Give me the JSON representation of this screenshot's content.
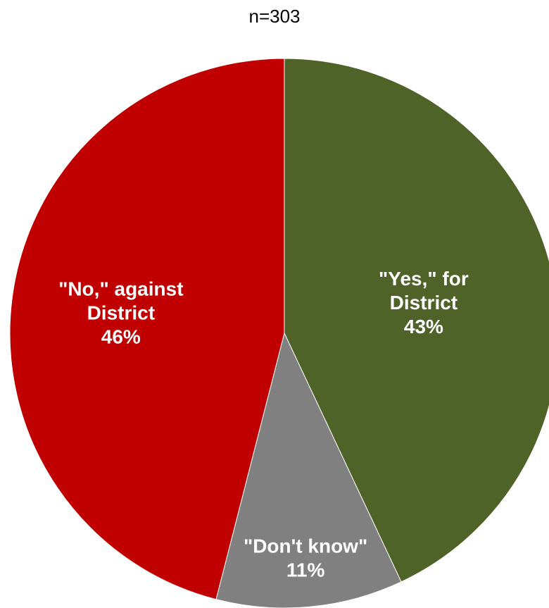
{
  "chart_data": {
    "type": "pie",
    "subtitle": "n=303",
    "slices": [
      {
        "label_lines": [
          "\"Yes,\" for",
          "District"
        ],
        "value": 43,
        "value_text": "43%",
        "color": "#4F6228"
      },
      {
        "label_lines": [
          "\"Don't know\""
        ],
        "value": 11,
        "value_text": "11%",
        "color": "#808080"
      },
      {
        "label_lines": [
          "\"No,\" against",
          "District"
        ],
        "value": 46,
        "value_text": "46%",
        "color": "#C00000"
      }
    ]
  }
}
